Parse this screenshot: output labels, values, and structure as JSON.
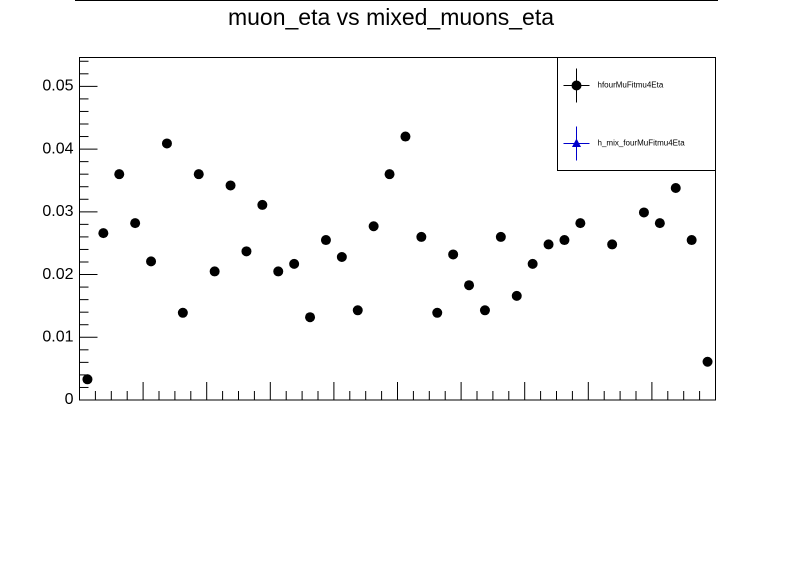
{
  "chart_data": {
    "type": "scatter",
    "title": "muon_eta vs mixed_muons_eta",
    "categories": [
      null,
      null,
      null,
      null,
      null,
      null,
      null,
      null,
      null,
      null,
      null,
      null,
      null,
      null,
      null,
      null,
      null,
      null,
      null,
      null,
      null,
      null,
      null,
      null,
      null,
      null,
      null,
      null,
      null,
      null,
      null,
      null,
      null,
      null,
      null,
      null,
      null,
      null,
      null,
      null
    ],
    "series": [
      {
        "name": "hfourMuFitmu4Eta",
        "color": "#000000",
        "marker": "circle",
        "values": [
          0.0033,
          0.0266,
          0.036,
          0.0282,
          0.0221,
          0.0409,
          0.0139,
          0.036,
          0.0205,
          0.0342,
          0.0237,
          0.0311,
          0.0205,
          0.0217,
          0.0132,
          0.0255,
          0.0228,
          0.0143,
          0.0277,
          0.036,
          0.042,
          0.026,
          0.0139,
          0.0232,
          0.0183,
          0.0143,
          0.026,
          0.0166,
          0.0217,
          0.0248,
          0.0255,
          0.0282,
          null,
          0.0248,
          null,
          0.0299,
          0.0282,
          0.0338,
          0.0255,
          0.0061
        ]
      },
      {
        "name": "h_mix_fourMuFitmu4Eta",
        "color": "#0000cc",
        "marker": "triangle",
        "values": [
          null,
          null,
          null,
          null,
          null,
          null,
          null,
          null,
          null,
          null,
          null,
          null,
          null,
          null,
          null,
          null,
          null,
          null,
          null,
          null,
          null,
          null,
          null,
          null,
          null,
          null,
          null,
          null,
          null,
          null,
          null,
          null,
          null,
          null,
          null,
          null,
          null,
          null,
          null,
          null
        ]
      }
    ],
    "ylim": [
      0,
      0.0546
    ],
    "yticks": [
      0,
      0.01,
      0.02,
      0.03,
      0.04,
      0.05
    ],
    "legend": "top-right"
  }
}
